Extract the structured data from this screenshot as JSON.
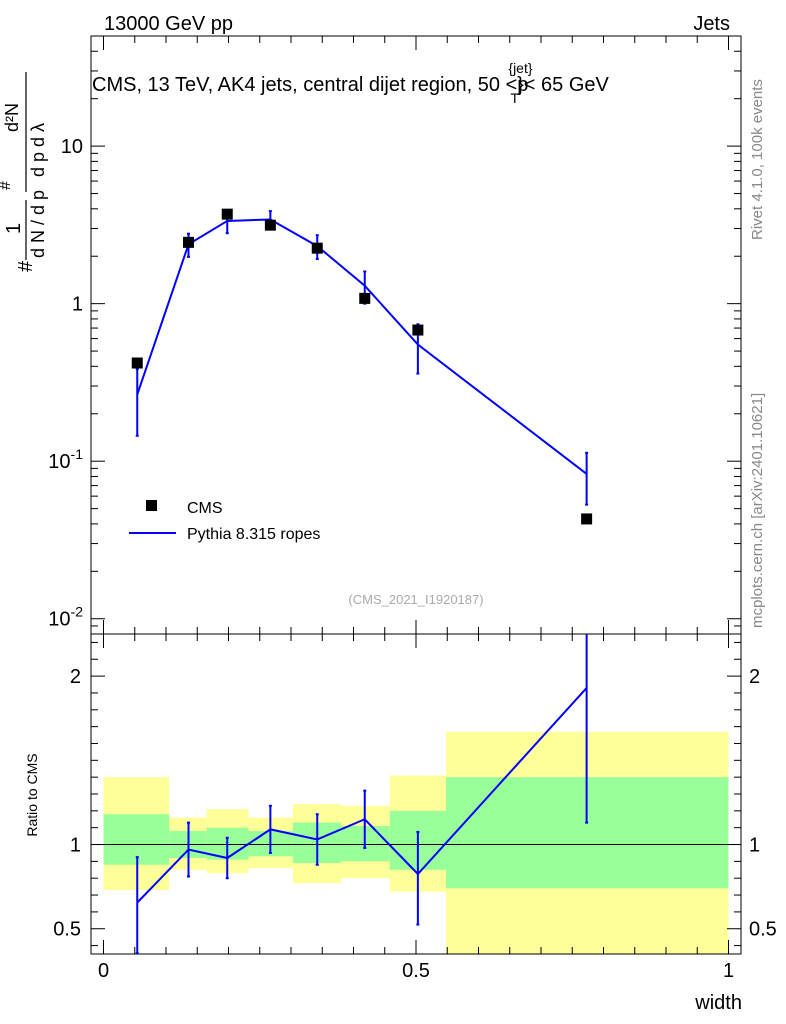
{
  "header": {
    "energy_label": "13000 GeV pp",
    "category_label": "Jets",
    "plot_title": "CMS, 13 TeV, AK4 jets, central dijet region, 50 <p",
    "title_sup": "{jet}",
    "title_sub": "T",
    "title_tail": "}< 65 GeV",
    "analysis_id": "(CMS_2021_I1920187)"
  },
  "side_labels": {
    "rivet": "Rivet 4.1.0,  100k events",
    "mcplots": "mcplots.cern.ch [arXiv:2401.10621]"
  },
  "legend": {
    "data_label": "CMS",
    "mc_label": "Pythia 8.315 ropes"
  },
  "colors": {
    "mc_line": "#0000ff",
    "data_marker": "#000000",
    "band_inner": "#99ff99",
    "band_outer": "#ffff99"
  },
  "chart_data": [
    {
      "type": "scatter",
      "name": "main",
      "ylabel": "1/(dN/dpT) d²N/(dpT dλ)",
      "yscale": "log",
      "ylim": [
        0.008,
        50
      ],
      "xlim": [
        -0.02,
        1.02
      ],
      "ytick_labels": [
        "10",
        "1",
        "10^-1",
        "10^-2"
      ],
      "data": {
        "name": "CMS",
        "x": [
          0.054,
          0.136,
          0.198,
          0.267,
          0.342,
          0.418,
          0.503,
          0.773
        ],
        "y": [
          0.42,
          2.45,
          3.7,
          3.15,
          2.25,
          1.08,
          0.68,
          0.043
        ]
      },
      "mc": {
        "name": "Pythia 8.315 ropes",
        "x": [
          0.054,
          0.136,
          0.198,
          0.267,
          0.342,
          0.418,
          0.503,
          0.773
        ],
        "y": [
          0.265,
          2.38,
          3.35,
          3.42,
          2.32,
          1.3,
          0.55,
          0.083
        ],
        "yerr_lo": [
          0.12,
          0.4,
          0.55,
          0.45,
          0.4,
          0.3,
          0.19,
          0.03
        ],
        "yerr_hi": [
          0.12,
          0.4,
          0.55,
          0.45,
          0.4,
          0.3,
          0.19,
          0.03
        ]
      }
    },
    {
      "type": "line",
      "name": "ratio",
      "ylabel": "Ratio to CMS",
      "xlabel": "width",
      "ylim": [
        0.35,
        2.25
      ],
      "xlim": [
        -0.02,
        1.02
      ],
      "xtick_labels": [
        "0",
        "0.5",
        "1"
      ],
      "ytick_labels": [
        "0.5",
        "1",
        "2"
      ],
      "bands": [
        {
          "x0": 0.0,
          "x1": 0.105,
          "outer": [
            0.73,
            1.4
          ],
          "inner": [
            0.88,
            1.18
          ]
        },
        {
          "x0": 0.105,
          "x1": 0.165,
          "outer": [
            0.85,
            1.16
          ],
          "inner": [
            0.92,
            1.08
          ]
        },
        {
          "x0": 0.165,
          "x1": 0.232,
          "outer": [
            0.83,
            1.21
          ],
          "inner": [
            0.91,
            1.1
          ]
        },
        {
          "x0": 0.232,
          "x1": 0.303,
          "outer": [
            0.86,
            1.16
          ],
          "inner": [
            0.93,
            1.08
          ]
        },
        {
          "x0": 0.303,
          "x1": 0.38,
          "outer": [
            0.77,
            1.24
          ],
          "inner": [
            0.89,
            1.13
          ]
        },
        {
          "x0": 0.38,
          "x1": 0.458,
          "outer": [
            0.8,
            1.23
          ],
          "inner": [
            0.9,
            1.11
          ]
        },
        {
          "x0": 0.458,
          "x1": 0.548,
          "outer": [
            0.72,
            1.41
          ],
          "inner": [
            0.85,
            1.2
          ]
        },
        {
          "x0": 0.548,
          "x1": 1.0,
          "outer": [
            0.33,
            1.67
          ],
          "inner": [
            0.74,
            1.4
          ]
        }
      ],
      "mc": {
        "x": [
          0.054,
          0.136,
          0.198,
          0.267,
          0.342,
          0.418,
          0.503,
          0.773
        ],
        "y": [
          0.655,
          0.97,
          0.92,
          1.09,
          1.03,
          1.15,
          0.825,
          1.93
        ],
        "yerr_lo": [
          0.3,
          0.16,
          0.12,
          0.14,
          0.15,
          0.17,
          0.3,
          0.8
        ],
        "yerr_hi": [
          0.27,
          0.16,
          0.12,
          0.14,
          0.15,
          0.17,
          0.25,
          0.6
        ]
      }
    }
  ]
}
